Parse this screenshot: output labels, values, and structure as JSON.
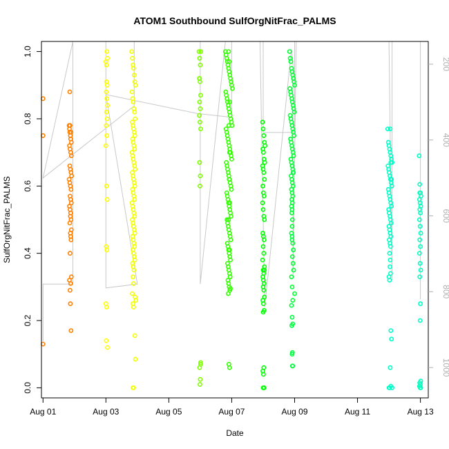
{
  "chart_data": {
    "type": "scatter",
    "title": "ATOM1 Southbound SulfOrgNitFrac_PALMS",
    "xlabel": "Date",
    "ylabel": "SulfOrgNitFrac_PALMS",
    "x_unit": "days since Aug 00",
    "xlim": [
      0.95,
      13.25
    ],
    "ylim": [
      -0.03,
      1.03
    ],
    "x_ticks": [
      {
        "value": 1,
        "label": "Aug 01"
      },
      {
        "value": 3,
        "label": "Aug 03"
      },
      {
        "value": 5,
        "label": "Aug 05"
      },
      {
        "value": 7,
        "label": "Aug 07"
      },
      {
        "value": 9,
        "label": "Aug 09"
      },
      {
        "value": 11,
        "label": "Aug 11"
      },
      {
        "value": 13,
        "label": "Aug 13"
      }
    ],
    "y_ticks": [
      {
        "value": 0.0,
        "label": "0.0"
      },
      {
        "value": 0.2,
        "label": "0.2"
      },
      {
        "value": 0.4,
        "label": "0.4"
      },
      {
        "value": 0.6,
        "label": "0.6"
      },
      {
        "value": 0.8,
        "label": "0.8"
      },
      {
        "value": 1.0,
        "label": "1.0"
      }
    ],
    "right_axis": {
      "label": "",
      "range": [
        1080,
        140
      ],
      "reversed": true,
      "ticks": [
        {
          "value": 200,
          "label": "200"
        },
        {
          "value": 400,
          "label": "400"
        },
        {
          "value": 600,
          "label": "600"
        },
        {
          "value": 800,
          "label": "800"
        },
        {
          "value": 1000,
          "label": "1000"
        }
      ],
      "color": "#b0b0b0"
    },
    "grid": false,
    "legend": "none",
    "flight_track_color": "#c8c8c8",
    "flight_track": [
      [
        1.0,
        930
      ],
      [
        1.0,
        780
      ],
      [
        1.95,
        780
      ],
      [
        1.95,
        140
      ],
      [
        1.0,
        500
      ],
      [
        3.9,
        310
      ],
      [
        3.9,
        140
      ],
      [
        3.0,
        140
      ],
      [
        3.0,
        790
      ],
      [
        4.0,
        780
      ],
      [
        3.0,
        280
      ],
      [
        5.9,
        330
      ],
      [
        7.0,
        340
      ],
      [
        7.0,
        140
      ],
      [
        6.0,
        140
      ],
      [
        6.0,
        780
      ],
      [
        6.8,
        140
      ],
      [
        7.0,
        140
      ],
      [
        8.0,
        140
      ],
      [
        8.0,
        380
      ],
      [
        9.0,
        380
      ],
      [
        9.0,
        140
      ],
      [
        7.9,
        140
      ],
      [
        8.05,
        840
      ],
      [
        8.9,
        160
      ],
      [
        8.95,
        200
      ],
      [
        8.95,
        760
      ],
      [
        9.05,
        140
      ],
      [
        12.0,
        140
      ],
      [
        12.1,
        770
      ],
      [
        12.1,
        140
      ],
      [
        13.0,
        140
      ],
      [
        13.0,
        820
      ]
    ],
    "series": [
      {
        "color": "#ff8000",
        "x": [
          1.0,
          1.0,
          1.0,
          1.83,
          1.84,
          1.85,
          1.86,
          1.87,
          1.88,
          1.89,
          1.9,
          1.84,
          1.86,
          1.88,
          1.9,
          1.85,
          1.87,
          1.89,
          1.91,
          1.83,
          1.85,
          1.87,
          1.89,
          1.86,
          1.88,
          1.9,
          1.84,
          1.86,
          1.88,
          1.87,
          1.89,
          1.85,
          1.9,
          1.87,
          1.88,
          1.89,
          1.86,
          1.9,
          1.84,
          1.88,
          1.86,
          1.87,
          1.89,
          1.85
        ],
        "y": [
          0.86,
          0.75,
          0.13,
          0.78,
          0.77,
          0.76,
          0.78,
          0.75,
          0.74,
          0.76,
          0.73,
          0.72,
          0.71,
          0.7,
          0.69,
          0.66,
          0.65,
          0.64,
          0.63,
          0.62,
          0.61,
          0.6,
          0.59,
          0.57,
          0.56,
          0.55,
          0.54,
          0.53,
          0.52,
          0.51,
          0.5,
          0.49,
          0.47,
          0.46,
          0.45,
          0.44,
          0.4,
          0.33,
          0.32,
          0.31,
          0.29,
          0.25,
          0.17,
          0.88
        ]
      },
      {
        "color": "#ffff00",
        "x": [
          3.0,
          3.02,
          3.03,
          3.05,
          3.02,
          3.04,
          3.01,
          3.03,
          3.05,
          3.02,
          3.04,
          3.01,
          3.03,
          3.0,
          3.02,
          3.04,
          3.01,
          3.03,
          3.0,
          3.02,
          3.01,
          3.05
        ],
        "y": [
          0.97,
          0.96,
          1.0,
          0.98,
          0.91,
          0.9,
          0.88,
          0.86,
          0.84,
          0.82,
          0.8,
          0.78,
          0.75,
          0.72,
          0.6,
          0.56,
          0.42,
          0.41,
          0.25,
          0.24,
          0.14,
          0.12
        ]
      },
      {
        "color": "#f2ff00",
        "x": [
          3.82,
          3.84,
          3.86,
          3.88,
          3.9,
          3.92,
          3.94,
          3.83,
          3.85,
          3.87,
          3.89,
          3.91,
          3.93,
          3.84,
          3.86,
          3.88,
          3.9,
          3.92,
          3.85,
          3.87,
          3.89,
          3.91,
          3.83,
          3.85,
          3.87,
          3.89,
          3.91,
          3.93,
          3.84,
          3.86,
          3.88,
          3.9,
          3.92,
          3.85,
          3.87,
          3.89,
          3.91,
          3.83,
          3.85,
          3.87,
          3.89,
          3.91,
          3.84,
          3.86,
          3.88,
          3.9,
          3.92,
          3.85,
          3.87,
          3.89,
          3.91,
          3.86,
          3.88,
          3.9,
          3.92,
          3.85,
          3.87,
          3.89,
          3.86,
          3.88,
          3.84,
          3.86,
          3.88,
          3.93,
          3.95,
          3.92,
          3.94,
          3.86,
          3.88
        ],
        "y": [
          1.0,
          0.98,
          0.96,
          0.95,
          0.93,
          0.91,
          0.9,
          0.88,
          0.86,
          0.85,
          0.83,
          0.82,
          0.8,
          0.79,
          0.78,
          0.77,
          0.76,
          0.75,
          0.74,
          0.73,
          0.72,
          0.71,
          0.7,
          0.69,
          0.68,
          0.67,
          0.66,
          0.65,
          0.64,
          0.63,
          0.62,
          0.61,
          0.6,
          0.59,
          0.58,
          0.57,
          0.56,
          0.55,
          0.54,
          0.53,
          0.52,
          0.51,
          0.5,
          0.49,
          0.48,
          0.47,
          0.46,
          0.45,
          0.44,
          0.43,
          0.42,
          0.41,
          0.4,
          0.39,
          0.38,
          0.37,
          0.36,
          0.35,
          0.33,
          0.31,
          0.28,
          0.25,
          0.24,
          0.27,
          0.26,
          0.155,
          0.085,
          0.0,
          0.0
        ]
      },
      {
        "color": "#80ff00",
        "x": [
          5.96,
          5.98,
          6.0,
          6.02,
          5.97,
          5.99,
          6.01,
          5.98,
          6.0,
          5.97,
          5.99,
          6.01,
          5.98,
          6.0,
          5.99,
          6.01,
          5.98,
          6.0,
          5.99,
          6.01,
          5.98
        ],
        "y": [
          1.0,
          0.98,
          0.96,
          1.0,
          0.92,
          0.91,
          0.87,
          0.85,
          0.83,
          0.81,
          0.79,
          0.77,
          0.67,
          0.63,
          0.6,
          0.07,
          0.06,
          0.025,
          0.01,
          0.075,
          0.92
        ]
      },
      {
        "color": "#33ff00",
        "x": [
          6.8,
          6.82,
          6.84,
          6.86,
          6.88,
          6.9,
          6.92,
          6.94,
          6.96,
          6.98,
          7.0,
          7.02,
          6.81,
          6.83,
          6.85,
          6.87,
          6.89,
          6.91,
          6.93,
          6.95,
          6.97,
          6.99,
          7.01,
          6.82,
          6.84,
          6.86,
          6.88,
          6.9,
          6.92,
          6.94,
          6.96,
          6.98,
          7.0,
          6.83,
          6.85,
          6.87,
          6.89,
          6.91,
          6.93,
          6.95,
          6.97,
          6.99,
          6.84,
          6.86,
          6.88,
          6.9,
          6.92,
          6.94,
          6.96,
          6.98,
          6.85,
          6.87,
          6.89,
          6.91,
          6.93,
          6.95,
          6.97,
          6.86,
          6.88,
          6.9,
          6.92,
          6.94,
          6.96,
          6.87,
          6.89,
          6.91,
          6.93,
          6.95,
          6.88,
          6.9,
          6.92,
          6.94,
          6.89,
          6.91,
          6.93,
          6.9,
          6.92,
          6.94,
          6.91,
          6.93,
          6.92,
          6.94,
          6.9,
          6.93,
          6.95,
          6.96
        ],
        "y": [
          1.0,
          0.99,
          0.98,
          0.97,
          0.96,
          0.95,
          0.94,
          0.93,
          0.92,
          0.91,
          0.9,
          0.89,
          0.88,
          0.87,
          0.86,
          0.85,
          0.84,
          0.83,
          0.82,
          0.81,
          0.8,
          0.79,
          0.78,
          0.77,
          0.76,
          0.75,
          0.74,
          0.73,
          0.72,
          0.71,
          0.7,
          0.69,
          0.68,
          0.67,
          0.66,
          0.65,
          0.64,
          0.63,
          0.62,
          0.61,
          0.6,
          0.59,
          0.58,
          0.57,
          0.56,
          0.55,
          0.54,
          0.53,
          0.52,
          0.51,
          0.5,
          0.49,
          0.48,
          0.47,
          0.46,
          0.45,
          0.44,
          0.43,
          0.42,
          0.41,
          0.4,
          0.39,
          0.38,
          0.37,
          0.36,
          0.35,
          0.34,
          0.33,
          0.32,
          0.31,
          0.3,
          0.29,
          0.28,
          0.07,
          0.06,
          1.0,
          0.97,
          0.85,
          0.78,
          0.7,
          0.62,
          0.55,
          0.5,
          0.41,
          0.33,
          0.295
        ]
      },
      {
        "color": "#00ff00",
        "x": [
          7.98,
          8.0,
          8.02,
          8.04,
          8.06,
          7.99,
          8.01,
          8.03,
          8.05,
          7.98,
          8.0,
          8.02,
          8.04,
          7.99,
          8.01,
          8.03,
          7.98,
          8.0,
          8.02,
          8.04,
          7.99,
          8.01,
          8.03,
          8.0,
          8.02,
          7.98,
          8.04,
          8.0,
          8.02,
          7.99,
          8.01,
          8.03,
          8.0,
          8.02,
          8.04,
          7.99,
          8.01,
          8.03,
          8.0,
          8.02,
          7.99,
          8.01,
          8.03,
          8.0,
          8.02,
          8.04
        ],
        "y": [
          0.79,
          0.77,
          0.75,
          0.73,
          0.72,
          0.71,
          0.7,
          0.68,
          0.67,
          0.66,
          0.65,
          0.64,
          0.62,
          0.6,
          0.58,
          0.57,
          0.55,
          0.53,
          0.51,
          0.5,
          0.46,
          0.45,
          0.44,
          0.42,
          0.4,
          0.38,
          0.36,
          0.35,
          0.34,
          0.33,
          0.32,
          0.31,
          0.3,
          0.29,
          0.27,
          0.26,
          0.25,
          0.23,
          0.225,
          0.06,
          0.05,
          0.04,
          0.0,
          0.0,
          0.0,
          0.35
        ]
      },
      {
        "color": "#00ff33",
        "x": [
          8.84,
          8.86,
          8.88,
          8.9,
          8.92,
          8.94,
          8.96,
          8.98,
          9.0,
          8.85,
          8.87,
          8.89,
          8.91,
          8.93,
          8.95,
          8.97,
          8.99,
          8.86,
          8.88,
          8.9,
          8.92,
          8.94,
          8.96,
          8.98,
          8.87,
          8.89,
          8.91,
          8.93,
          8.95,
          8.97,
          8.88,
          8.9,
          8.92,
          8.94,
          8.96,
          8.89,
          8.91,
          8.93,
          8.95,
          8.9,
          8.92,
          8.94,
          8.91,
          8.93,
          8.9,
          8.92,
          8.91,
          8.93,
          8.92,
          8.9,
          8.92,
          8.94,
          8.96,
          8.93,
          8.95,
          8.97,
          8.9,
          8.92,
          9.0,
          8.94
        ],
        "y": [
          1.0,
          0.98,
          0.97,
          0.95,
          0.94,
          0.93,
          0.92,
          0.91,
          0.9,
          0.89,
          0.88,
          0.87,
          0.86,
          0.85,
          0.84,
          0.83,
          0.82,
          0.81,
          0.8,
          0.79,
          0.78,
          0.77,
          0.76,
          0.75,
          0.74,
          0.73,
          0.72,
          0.71,
          0.7,
          0.69,
          0.68,
          0.67,
          0.66,
          0.65,
          0.64,
          0.63,
          0.62,
          0.61,
          0.6,
          0.59,
          0.58,
          0.57,
          0.56,
          0.55,
          0.54,
          0.53,
          0.52,
          0.5,
          0.48,
          0.46,
          0.44,
          0.43,
          0.41,
          0.39,
          0.37,
          0.35,
          0.33,
          0.3,
          0.28,
          0.26
        ]
      },
      {
        "color": "#00ff40",
        "x": [
          8.9,
          8.92,
          8.94,
          8.91,
          8.93,
          8.92,
          8.94,
          8.93,
          8.95,
          8.92
        ],
        "y": [
          0.245,
          0.21,
          0.19,
          0.185,
          0.105,
          0.1,
          0.065,
          0.065,
          0.64,
          0.45
        ]
      },
      {
        "color": "#00ffc8",
        "x": [
          11.96,
          11.98,
          12.0,
          12.02,
          12.04,
          12.06,
          12.08,
          12.1,
          11.97,
          11.99,
          12.01,
          12.03,
          12.05,
          12.07,
          12.09,
          11.98,
          12.0,
          12.02,
          12.04,
          12.06,
          12.08,
          11.99,
          12.01,
          12.03,
          12.05,
          12.07,
          12.0,
          12.02,
          12.04,
          12.06,
          12.01,
          12.03,
          12.05,
          12.02,
          12.04,
          12.03,
          12.05,
          12.0,
          12.02,
          12.06,
          12.08,
          12.04,
          12.06,
          12.1,
          12.0,
          12.02,
          12.04,
          12.06,
          12.08
        ],
        "y": [
          0.77,
          0.73,
          0.72,
          0.71,
          0.7,
          0.69,
          0.68,
          0.67,
          0.66,
          0.65,
          0.64,
          0.63,
          0.62,
          0.61,
          0.6,
          0.59,
          0.58,
          0.57,
          0.56,
          0.55,
          0.54,
          0.53,
          0.52,
          0.51,
          0.5,
          0.49,
          0.48,
          0.47,
          0.46,
          0.45,
          0.44,
          0.43,
          0.42,
          0.4,
          0.38,
          0.36,
          0.34,
          0.33,
          0.32,
          0.17,
          0.145,
          0.06,
          0.005,
          0.0,
          0.0,
          0.0,
          0.77,
          0.67,
          0.62
        ]
      },
      {
        "color": "#00ffc0",
        "x": [
          12.96,
          12.98,
          13.0,
          13.02,
          12.97,
          12.99,
          13.01,
          12.98,
          13.0,
          12.97,
          12.99,
          13.01,
          12.98,
          13.0,
          12.97,
          12.99,
          13.01,
          12.98,
          13.0,
          12.99,
          13.01,
          12.98,
          13.0,
          12.97,
          12.99,
          13.01,
          12.98
        ],
        "y": [
          0.69,
          0.605,
          0.58,
          0.57,
          0.56,
          0.55,
          0.54,
          0.53,
          0.52,
          0.5,
          0.48,
          0.46,
          0.44,
          0.42,
          0.4,
          0.37,
          0.35,
          0.33,
          0.25,
          0.2,
          0.02,
          0.015,
          0.01,
          0.005,
          0.0,
          0.0,
          0.58
        ]
      }
    ]
  }
}
